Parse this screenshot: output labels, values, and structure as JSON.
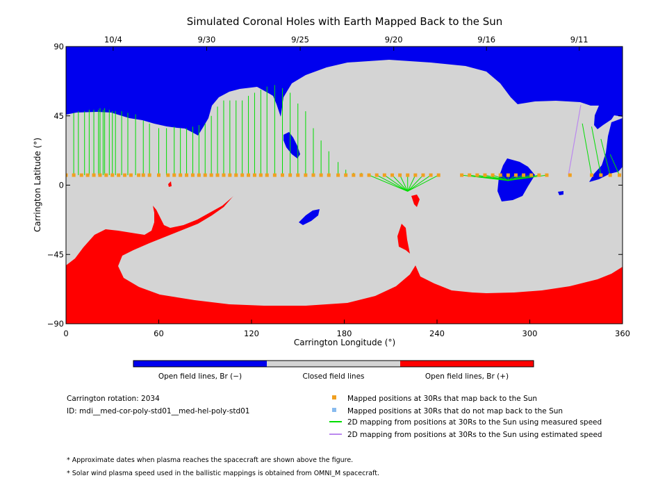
{
  "chart_data": {
    "type": "map",
    "title": "Simulated Coronal Holes with Earth Mapped Back to the Sun",
    "xlabel": "Carrington Longitude (°)",
    "ylabel": "Carrington Latitude (°)",
    "xlim": [
      0,
      360
    ],
    "ylim": [
      -90,
      90
    ],
    "x_ticks": [
      {
        "value": 0,
        "label": "0"
      },
      {
        "value": 60,
        "label": "60"
      },
      {
        "value": 120,
        "label": "120"
      },
      {
        "value": 180,
        "label": "180"
      },
      {
        "value": 240,
        "label": "240"
      },
      {
        "value": 300,
        "label": "300"
      },
      {
        "value": 360,
        "label": "360"
      }
    ],
    "y_ticks": [
      {
        "value": 90,
        "label": "90"
      },
      {
        "value": 45,
        "label": "45"
      },
      {
        "value": 0,
        "label": "0"
      },
      {
        "value": -45,
        "label": "-45"
      },
      {
        "value": -90,
        "label": "-90"
      }
    ],
    "top_date_ticks": [
      {
        "value": 30.5,
        "label": "10/4"
      },
      {
        "value": 91,
        "label": "9/30"
      },
      {
        "value": 151.5,
        "label": "9/25"
      },
      {
        "value": 212,
        "label": "9/20"
      },
      {
        "value": 272,
        "label": "9/16"
      },
      {
        "value": 332,
        "label": "9/11"
      }
    ],
    "colors": {
      "open_negative": "#0000ee",
      "closed": "#d4d4d4",
      "open_positive": "#ff0000",
      "mapped_point": "#f0a020",
      "unmapped_point": "#88bbee",
      "measured_speed_line": "#00dd00",
      "estimated_speed_line": "#bb88ee"
    },
    "colorbar": {
      "labels": [
        "Open field lines, Br (−)",
        "Closed field lines",
        "Open field lines, Br (+)"
      ]
    },
    "mapped_positions_lat": 6.5,
    "mapped_positions_lon": [
      0,
      5,
      10,
      14,
      18,
      22,
      26,
      30,
      34,
      38,
      42,
      47,
      50,
      54,
      60,
      66,
      70,
      74,
      78,
      82,
      86,
      90,
      94,
      98,
      102,
      106,
      110,
      114,
      118,
      122,
      126,
      130,
      135,
      140,
      145,
      150,
      155,
      160,
      165,
      170,
      176,
      181,
      186,
      191,
      196,
      201,
      206,
      211,
      216,
      221,
      226,
      231,
      236,
      241,
      256,
      261,
      266,
      271,
      276,
      281,
      286,
      291,
      296,
      301,
      306,
      311,
      326,
      340,
      346,
      352,
      358
    ],
    "mapping_lines_measured": [
      [
        0,
        12
      ],
      [
        5,
        47
      ],
      [
        8,
        48
      ],
      [
        12,
        48
      ],
      [
        15,
        49
      ],
      [
        18,
        49
      ],
      [
        21,
        49
      ],
      [
        22,
        50
      ],
      [
        24,
        49
      ],
      [
        25,
        50
      ],
      [
        28,
        49
      ],
      [
        30,
        48
      ],
      [
        32,
        48
      ],
      [
        36,
        48
      ],
      [
        40,
        47
      ],
      [
        45,
        46
      ],
      [
        50,
        42
      ],
      [
        54,
        40
      ],
      [
        60,
        37
      ],
      [
        65,
        37
      ],
      [
        70,
        38
      ],
      [
        74,
        37
      ],
      [
        78,
        37
      ],
      [
        82,
        38
      ],
      [
        86,
        39
      ],
      [
        90,
        40
      ],
      [
        94,
        45
      ],
      [
        98,
        51
      ],
      [
        102,
        55
      ],
      [
        106,
        55
      ],
      [
        110,
        55
      ],
      [
        114,
        55
      ],
      [
        118,
        58
      ],
      [
        122,
        60
      ],
      [
        126,
        62
      ],
      [
        130,
        64
      ],
      [
        135,
        65
      ],
      [
        140,
        63
      ],
      [
        145,
        60
      ],
      [
        150,
        53
      ],
      [
        155,
        48
      ],
      [
        160,
        37
      ],
      [
        165,
        29
      ],
      [
        170,
        22
      ],
      [
        176,
        15
      ],
      [
        181,
        10
      ],
      [
        186,
        8
      ],
      [
        191,
        8
      ],
      [
        196,
        5
      ],
      [
        201,
        5
      ],
      [
        206,
        5
      ],
      [
        211,
        5
      ],
      [
        216,
        5
      ],
      [
        221,
        5
      ],
      [
        226,
        5
      ],
      [
        231,
        5
      ],
      [
        236,
        5
      ],
      [
        241,
        5
      ],
      [
        256,
        7
      ],
      [
        261,
        7
      ],
      [
        266,
        7
      ],
      [
        271,
        7
      ],
      [
        276,
        7
      ],
      [
        281,
        7
      ],
      [
        286,
        7
      ],
      [
        291,
        7
      ],
      [
        296,
        7
      ],
      [
        301,
        7
      ],
      [
        306,
        7
      ],
      [
        311,
        7
      ],
      [
        340,
        40
      ],
      [
        346,
        38
      ],
      [
        352,
        30
      ],
      [
        358,
        20
      ]
    ],
    "mapping_lines_estimated": [
      [
        326,
        52
      ]
    ],
    "legend": [
      {
        "marker": "square",
        "color": "#f0a020",
        "label": "Mapped positions at 30Rs that map back to the Sun"
      },
      {
        "marker": "square",
        "color": "#88bbee",
        "label": "Mapped positions at 30Rs that do not map back to the Sun"
      },
      {
        "marker": "line",
        "color": "#00dd00",
        "label": "2D mapping from positions at 30Rs to the Sun using measured speed"
      },
      {
        "marker": "line",
        "color": "#bb88ee",
        "label": "2D mapping from positions at 30Rs to the Sun using estimated speed"
      }
    ]
  },
  "info": {
    "rotation": "Carrington rotation: 2034",
    "id": "ID: mdi__med-cor-poly-std01__med-hel-poly-std01"
  },
  "footnotes": [
    "* Approximate dates when plasma reaches the spacecraft are shown above the figure.",
    "* Solar wind plasma speed used in the ballistic mappings is obtained from OMNI_M spacecraft."
  ]
}
